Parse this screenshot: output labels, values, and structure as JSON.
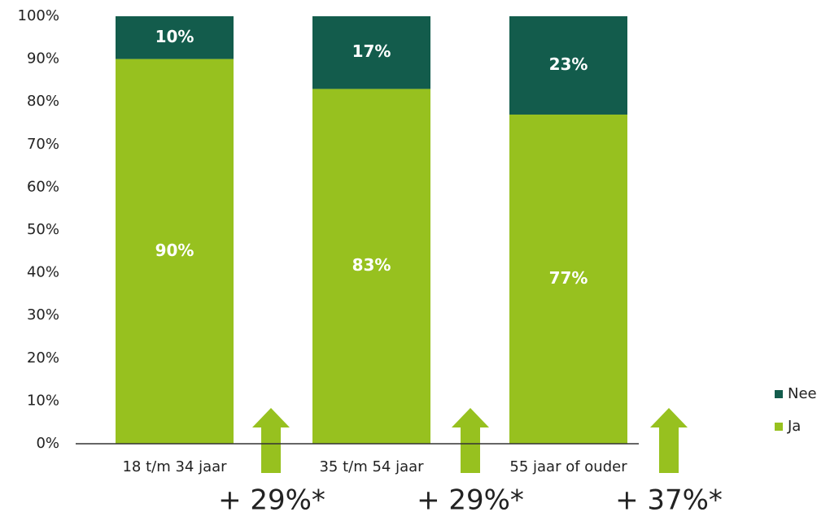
{
  "chart_data": {
    "type": "stacked_bar",
    "categories": [
      "18 t/m 34 jaar",
      "35 t/m 54 jaar",
      "55 jaar of ouder"
    ],
    "series": [
      {
        "name": "Ja",
        "color": "#97c11f",
        "values": [
          90,
          83,
          77
        ],
        "value_labels": [
          "90%",
          "83%",
          "77%"
        ]
      },
      {
        "name": "Nee",
        "color": "#135c4c",
        "values": [
          10,
          17,
          23
        ],
        "value_labels": [
          "10%",
          "17%",
          "23%"
        ]
      }
    ],
    "ylim": [
      0,
      100
    ],
    "yticks": [
      {
        "value": 0,
        "label": "0%"
      },
      {
        "value": 10,
        "label": "10%"
      },
      {
        "value": 20,
        "label": "20%"
      },
      {
        "value": 30,
        "label": "30%"
      },
      {
        "value": 40,
        "label": "40%"
      },
      {
        "value": 50,
        "label": "50%"
      },
      {
        "value": 60,
        "label": "60%"
      },
      {
        "value": 70,
        "label": "70%"
      },
      {
        "value": 80,
        "label": "80%"
      },
      {
        "value": 90,
        "label": "90%"
      },
      {
        "value": 100,
        "label": "100%"
      }
    ],
    "annotations": [
      "+ 29%*",
      "+ 29%*",
      "+ 37%*"
    ],
    "legend": "right"
  }
}
